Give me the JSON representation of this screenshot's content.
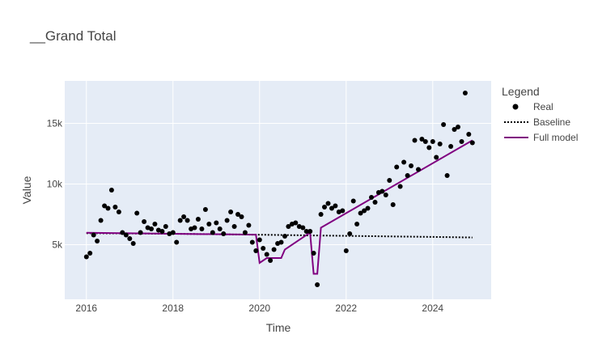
{
  "chart_data": {
    "type": "scatter",
    "title": "__Grand Total",
    "xlabel": "Time",
    "ylabel": "Value",
    "xlim": [
      2015.5,
      2025.35
    ],
    "ylim": [
      500,
      18500
    ],
    "xticks": [
      2016,
      2018,
      2020,
      2022,
      2024
    ],
    "xtick_labels": [
      "2016",
      "2018",
      "2020",
      "2022",
      "2024"
    ],
    "yticks": [
      5000,
      10000,
      15000
    ],
    "ytick_labels": [
      "5k",
      "10k",
      "15k"
    ],
    "grid": true,
    "legend": {
      "title": "Legend",
      "placement": "right",
      "entries": [
        {
          "label": "Real",
          "marker": "dot",
          "color": "#000000"
        },
        {
          "label": "Baseline",
          "marker": "dotted-line",
          "color": "#000000"
        },
        {
          "label": "Full model",
          "marker": "line",
          "color": "#800080"
        }
      ]
    },
    "colors": {
      "real": "#000000",
      "baseline": "#000000",
      "full_model": "#800080",
      "plot_bg": "#e5ecf6",
      "grid": "#ffffff"
    },
    "series": [
      {
        "name": "Real",
        "mode": "markers",
        "x": [
          2016.0,
          2016.083,
          2016.167,
          2016.25,
          2016.333,
          2016.417,
          2016.5,
          2016.583,
          2016.667,
          2016.75,
          2016.833,
          2016.917,
          2017.0,
          2017.083,
          2017.167,
          2017.25,
          2017.333,
          2017.417,
          2017.5,
          2017.583,
          2017.667,
          2017.75,
          2017.833,
          2017.917,
          2018.0,
          2018.083,
          2018.167,
          2018.25,
          2018.333,
          2018.417,
          2018.5,
          2018.583,
          2018.667,
          2018.75,
          2018.833,
          2018.917,
          2019.0,
          2019.083,
          2019.167,
          2019.25,
          2019.333,
          2019.417,
          2019.5,
          2019.583,
          2019.667,
          2019.75,
          2019.833,
          2019.917,
          2020.0,
          2020.083,
          2020.167,
          2020.25,
          2020.333,
          2020.417,
          2020.5,
          2020.583,
          2020.667,
          2020.75,
          2020.833,
          2020.917,
          2021.0,
          2021.083,
          2021.167,
          2021.25,
          2021.333,
          2021.417,
          2021.5,
          2021.583,
          2021.667,
          2021.75,
          2021.833,
          2021.917,
          2022.0,
          2022.083,
          2022.167,
          2022.25,
          2022.333,
          2022.417,
          2022.5,
          2022.583,
          2022.667,
          2022.75,
          2022.833,
          2022.917,
          2023.0,
          2023.083,
          2023.167,
          2023.25,
          2023.333,
          2023.417,
          2023.5,
          2023.583,
          2023.667,
          2023.75,
          2023.833,
          2023.917,
          2024.0,
          2024.083,
          2024.167,
          2024.25,
          2024.333,
          2024.417,
          2024.5,
          2024.583,
          2024.667,
          2024.75,
          2024.833,
          2024.917
        ],
        "y": [
          4000,
          4300,
          5800,
          5300,
          7000,
          8200,
          8000,
          9500,
          8100,
          7700,
          6000,
          5800,
          5500,
          5100,
          7600,
          6000,
          6900,
          6400,
          6300,
          6700,
          6200,
          6100,
          6500,
          5900,
          6000,
          5200,
          7000,
          7300,
          7000,
          6300,
          6400,
          7100,
          6300,
          7900,
          6700,
          6000,
          6800,
          6300,
          5900,
          7000,
          7700,
          6500,
          7500,
          7300,
          6000,
          6600,
          5200,
          4500,
          5400,
          4700,
          4200,
          3700,
          4600,
          5100,
          5200,
          5700,
          6500,
          6700,
          6800,
          6500,
          6400,
          6100,
          6100,
          4300,
          1700,
          7500,
          8100,
          8400,
          8000,
          8200,
          7700,
          7800,
          4500,
          5900,
          8600,
          6700,
          7600,
          7800,
          8000,
          8900,
          8500,
          9300,
          9400,
          9100,
          10300,
          8300,
          11400,
          9800,
          11800,
          10700,
          11500,
          13600,
          11200,
          13700,
          13500,
          13000,
          13500,
          12200,
          13300,
          14900,
          10700,
          13100,
          14500,
          14700,
          13500,
          17500,
          14100,
          13400
        ]
      },
      {
        "name": "Baseline",
        "mode": "dotted-line",
        "x": [
          2016.0,
          2018.0,
          2020.0,
          2022.0,
          2024.0,
          2024.917
        ],
        "y": [
          5950,
          5900,
          5820,
          5730,
          5640,
          5590
        ]
      },
      {
        "name": "Full model",
        "mode": "line",
        "x": [
          2016.0,
          2018.0,
          2019.917,
          2020.0,
          2020.167,
          2020.5,
          2020.583,
          2021.167,
          2021.25,
          2021.333,
          2021.417,
          2024.917
        ],
        "y": [
          5980,
          5900,
          5830,
          3500,
          3900,
          3900,
          4600,
          6000,
          2600,
          2600,
          6400,
          13600
        ]
      }
    ]
  }
}
